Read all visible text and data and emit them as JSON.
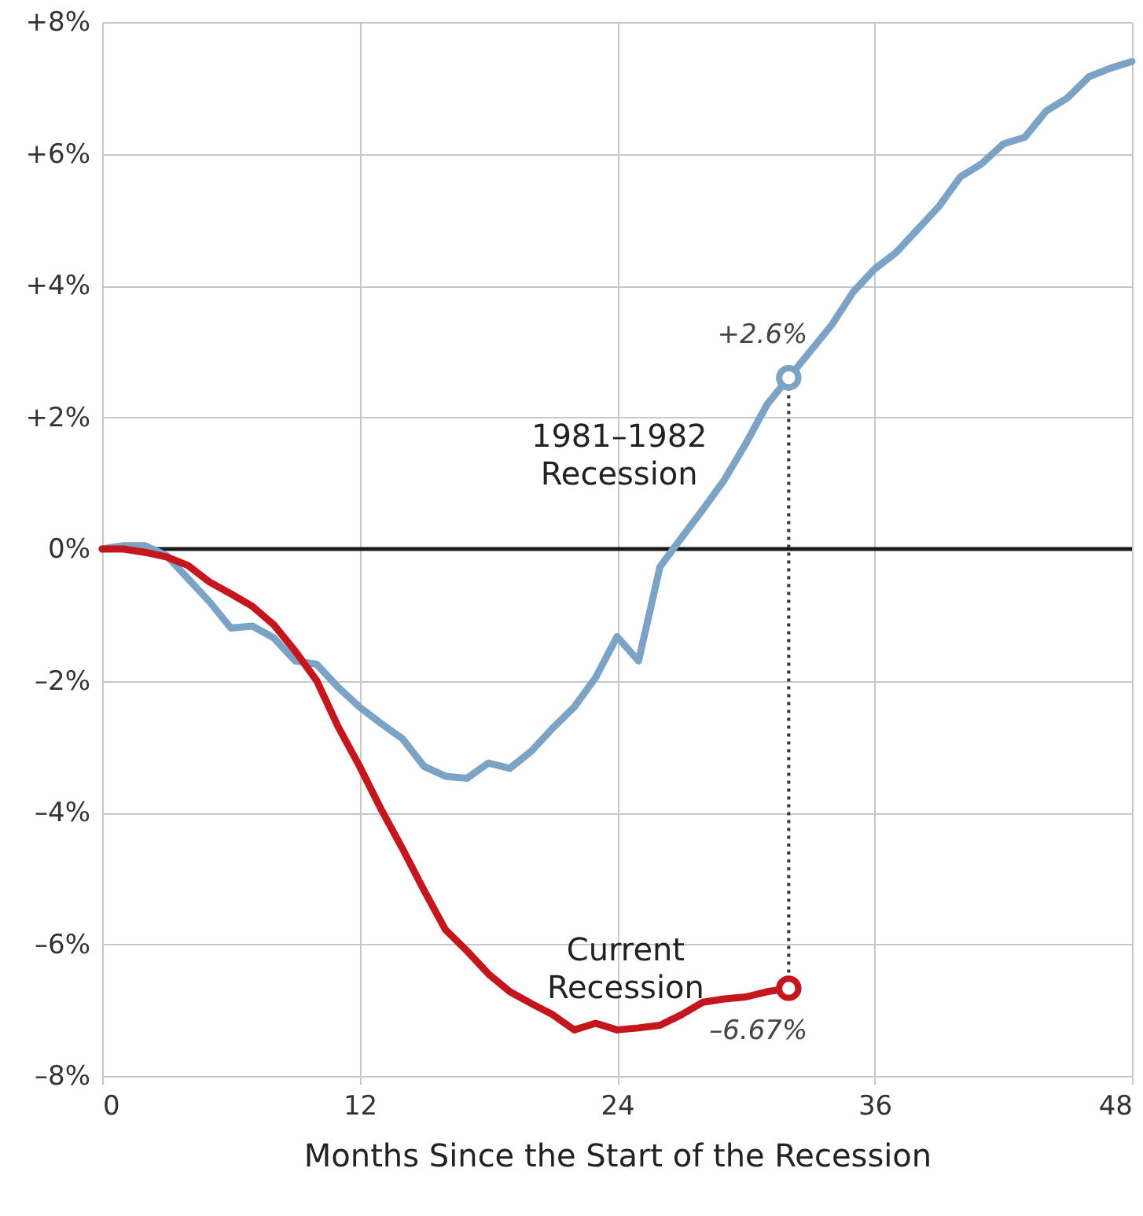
{
  "chart_data": {
    "type": "line",
    "xlabel": "Months Since the Start of the Recession",
    "x": [
      0,
      1,
      2,
      3,
      4,
      5,
      6,
      7,
      8,
      9,
      10,
      11,
      12,
      13,
      14,
      15,
      16,
      17,
      18,
      19,
      20,
      21,
      22,
      23,
      24,
      25,
      26,
      27,
      28,
      29,
      30,
      31,
      32,
      33,
      34,
      35,
      36,
      37,
      38,
      39,
      40,
      41,
      42,
      43,
      44,
      45,
      46,
      47,
      48
    ],
    "series": [
      {
        "name": "1981–1982 Recession",
        "color": "#7ba3c6",
        "values": [
          0,
          0.05,
          0.05,
          -0.1,
          -0.45,
          -0.8,
          -1.2,
          -1.17,
          -1.35,
          -1.7,
          -1.75,
          -2.1,
          -2.4,
          -2.65,
          -2.88,
          -3.3,
          -3.45,
          -3.48,
          -3.25,
          -3.33,
          -3.07,
          -2.72,
          -2.4,
          -1.95,
          -1.33,
          -1.7,
          -0.27,
          0.17,
          0.6,
          1.05,
          1.6,
          2.2,
          2.6,
          3.0,
          3.4,
          3.9,
          4.25,
          4.5,
          4.85,
          5.2,
          5.65,
          5.85,
          6.15,
          6.25,
          6.65,
          6.85,
          7.17,
          7.3,
          7.4
        ]
      },
      {
        "name": "Current Recession",
        "color": "#c4161c",
        "x": [
          0,
          1,
          2,
          3,
          4,
          5,
          6,
          7,
          8,
          9,
          10,
          11,
          12,
          13,
          14,
          15,
          16,
          17,
          18,
          19,
          20,
          21,
          22,
          23,
          24,
          25,
          26,
          27,
          28,
          29,
          30,
          31,
          32
        ],
        "values": [
          0,
          0,
          -0.05,
          -0.12,
          -0.25,
          -0.5,
          -0.68,
          -0.87,
          -1.15,
          -1.55,
          -2.0,
          -2.7,
          -3.3,
          -3.95,
          -4.55,
          -5.18,
          -5.78,
          -6.1,
          -6.45,
          -6.72,
          -6.9,
          -7.07,
          -7.3,
          -7.2,
          -7.3,
          -7.27,
          -7.23,
          -7.07,
          -6.88,
          -6.83,
          -6.8,
          -6.72,
          -6.67
        ]
      }
    ],
    "annotations": [
      {
        "text": "+2.6%",
        "x": 32,
        "y": 2.6
      },
      {
        "text": "–6.67%",
        "x": 32,
        "y": -6.67
      }
    ],
    "ref_lines": [
      {
        "axis": "y",
        "value": 0,
        "color": "#1a1a1a",
        "line_style": "solid"
      },
      {
        "axis": "x",
        "value": 32,
        "color": "#333333",
        "line_style": "dotted"
      }
    ],
    "xlim": [
      0,
      48
    ],
    "xticks": [
      0,
      12,
      24,
      36,
      48
    ],
    "ylim": [
      -8,
      8
    ],
    "yticks": [
      {
        "value": -8,
        "label": "–8%"
      },
      {
        "value": -6,
        "label": "–6%"
      },
      {
        "value": -4,
        "label": "–4%"
      },
      {
        "value": -2,
        "label": "–2%"
      },
      {
        "value": 0,
        "label": "0%"
      },
      {
        "value": 2,
        "label": "+2%"
      },
      {
        "value": 4,
        "label": "+4%"
      },
      {
        "value": 6,
        "label": "+6%"
      },
      {
        "value": 8,
        "label": "+8%"
      }
    ],
    "grid": true,
    "line_style": "solid",
    "marker": "none"
  }
}
